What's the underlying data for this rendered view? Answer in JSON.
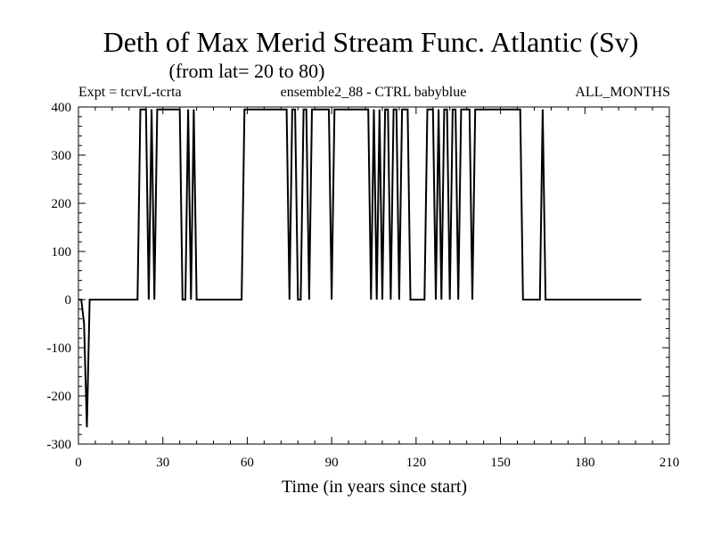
{
  "chart_data": {
    "type": "line",
    "title": "Deth of Max Merid Stream Func. Atlantic (Sv)",
    "subtitle": "(from lat= 20 to 80)",
    "info_left": "Expt = tcrvL-tcrta",
    "info_center": "ensemble2_88 - CTRL babyblue",
    "info_right": "ALL_MONTHS",
    "xlabel": "Time (in years since start)",
    "ylabel": "",
    "xlim": [
      0,
      210
    ],
    "ylim": [
      -300,
      400
    ],
    "xticks": [
      0,
      30,
      60,
      90,
      120,
      150,
      180,
      210
    ],
    "yticks": [
      400,
      300,
      200,
      100,
      0,
      -100,
      -200,
      -300
    ],
    "xtick_labels": [
      "0",
      "30",
      "60",
      "90",
      "120",
      "150",
      "180",
      "210"
    ],
    "ytick_labels": [
      "400",
      "300",
      "200",
      "100",
      "0",
      "-100",
      "-200",
      "-300"
    ],
    "grid": false,
    "series": [
      {
        "color": "#000000",
        "x": [
          0,
          1,
          2,
          3,
          4,
          5,
          10,
          15,
          20,
          21,
          22,
          24,
          25,
          26,
          27,
          28,
          29,
          36,
          37,
          38,
          39,
          40,
          41,
          42,
          43,
          44,
          50,
          58,
          59,
          60,
          70,
          74,
          75,
          76,
          77,
          78,
          79,
          80,
          81,
          82,
          83,
          84,
          85,
          89,
          90,
          91,
          92,
          93,
          100,
          103,
          104,
          105,
          106,
          107,
          108,
          109,
          110,
          111,
          112,
          113,
          114,
          115,
          116,
          117,
          118,
          123,
          124,
          125,
          126,
          127,
          128,
          129,
          130,
          131,
          132,
          133,
          134,
          135,
          136,
          137,
          138,
          139,
          140,
          141,
          150,
          157,
          158,
          159,
          160,
          164,
          165,
          166,
          167,
          170,
          180,
          190,
          200
        ],
        "y": [
          0,
          0,
          -50,
          -265,
          0,
          0,
          0,
          0,
          0,
          0,
          395,
          395,
          0,
          395,
          0,
          395,
          395,
          395,
          0,
          0,
          395,
          0,
          395,
          0,
          0,
          0,
          0,
          0,
          395,
          395,
          395,
          395,
          0,
          395,
          395,
          0,
          0,
          395,
          395,
          0,
          395,
          395,
          395,
          395,
          0,
          395,
          395,
          395,
          395,
          395,
          0,
          395,
          0,
          395,
          0,
          395,
          395,
          0,
          395,
          395,
          0,
          395,
          395,
          395,
          0,
          0,
          395,
          395,
          395,
          0,
          395,
          0,
          395,
          395,
          0,
          395,
          395,
          0,
          395,
          395,
          395,
          395,
          0,
          395,
          395,
          395,
          0,
          0,
          0,
          0,
          395,
          0,
          0,
          0,
          0,
          0,
          0
        ]
      }
    ]
  }
}
